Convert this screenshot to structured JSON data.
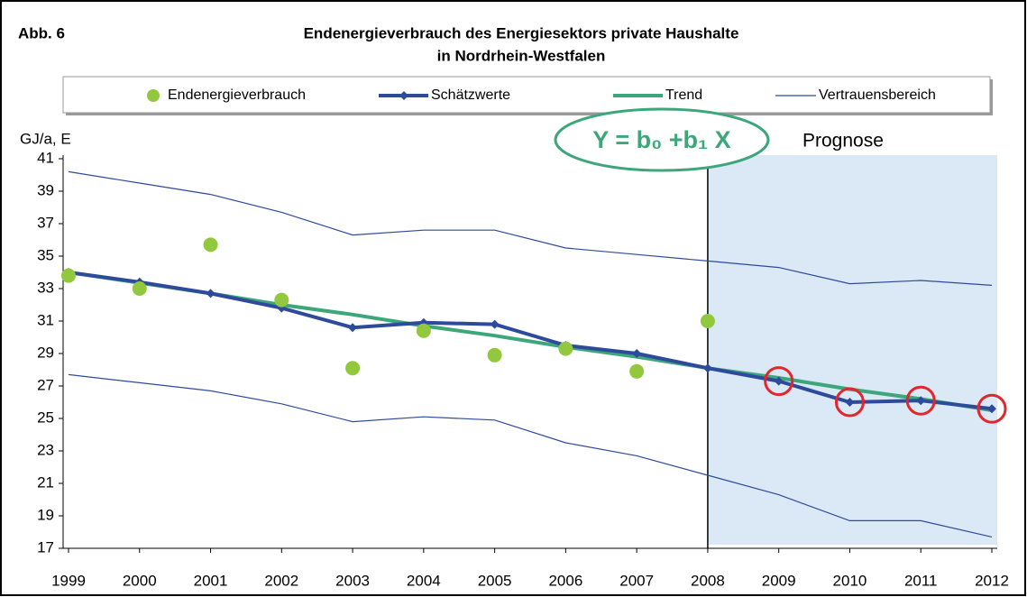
{
  "chart_data": {
    "type": "line",
    "figure_label": "Abb. 6",
    "title": [
      "Endenergieverbrauch des Energiesektors private Haushalte",
      "in Nordrhein-Westfalen"
    ],
    "y_label": "GJ/a, E",
    "annotation": "Y = b₀ +b₁ X",
    "forecast_label": "Prognose",
    "forecast_start": "2008",
    "forecast_color": "#dbe8f6",
    "highlight": [
      "2009",
      "2010",
      "2011",
      "2012"
    ],
    "highlight_color": "#e3262b",
    "categories": [
      "1999",
      "2000",
      "2001",
      "2002",
      "2003",
      "2004",
      "2005",
      "2006",
      "2007",
      "2008",
      "2009",
      "2010",
      "2011",
      "2012"
    ],
    "series": [
      {
        "name": "Endenergieverbrauch",
        "color": "#92c83e",
        "mode": "markers",
        "values": [
          33.8,
          33.0,
          35.7,
          32.3,
          28.1,
          30.4,
          28.9,
          29.3,
          27.9,
          31.0,
          null,
          null,
          null,
          null
        ]
      },
      {
        "name": "Schätzwerte",
        "color": "#2e4b9b",
        "mode": "line-markers",
        "values": [
          34.0,
          33.4,
          32.7,
          31.8,
          30.6,
          30.9,
          30.8,
          29.5,
          29.0,
          28.1,
          27.3,
          26.0,
          26.1,
          25.6
        ]
      },
      {
        "name": "Trend",
        "color": "#3da67a",
        "mode": "line",
        "values": [
          34.0,
          33.35,
          32.7,
          32.0,
          31.4,
          30.7,
          30.1,
          29.4,
          28.8,
          28.1,
          27.5,
          26.8,
          26.2,
          25.5
        ]
      }
    ],
    "confidence": {
      "name": "Vertrauensbereich",
      "color": "#2e4b9b",
      "upper": [
        40.2,
        39.5,
        38.8,
        37.7,
        36.3,
        36.6,
        36.6,
        35.5,
        35.1,
        34.7,
        34.3,
        33.3,
        33.5,
        33.2
      ],
      "lower": [
        27.7,
        27.2,
        26.7,
        25.9,
        24.8,
        25.1,
        24.9,
        23.5,
        22.7,
        21.5,
        20.3,
        18.7,
        18.7,
        17.7
      ]
    },
    "ylim": [
      17,
      41
    ],
    "yticks": [
      17,
      19,
      21,
      23,
      25,
      27,
      29,
      31,
      33,
      35,
      37,
      39,
      41
    ]
  }
}
